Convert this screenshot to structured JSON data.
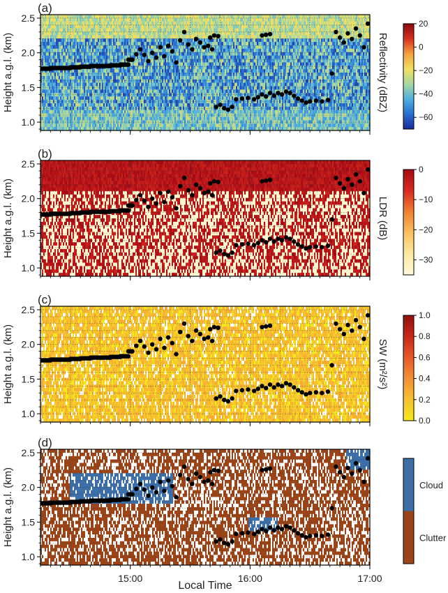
{
  "chart_data": [
    {
      "type": "heatmap",
      "panel": "(a)",
      "ylabel": "Height a.g.l. (km)",
      "xlim": [
        "14:15",
        "17:00"
      ],
      "ylim": [
        0.88,
        2.55
      ],
      "yticks": [
        "1.0",
        "1.5",
        "2.0",
        "2.5"
      ],
      "colorbar": {
        "label": "Reflectivity (dBZ)",
        "ticks": [
          "20",
          "0",
          "−20",
          "−40",
          "−60"
        ],
        "range": [
          -70,
          20
        ],
        "colors": [
          "#1a2a9a",
          "#2a6fd0",
          "#4fb0e0",
          "#a8d8a0",
          "#f3e060",
          "#f4a040",
          "#d83020",
          "#8a0a10"
        ]
      },
      "grid": true
    },
    {
      "type": "heatmap",
      "panel": "(b)",
      "ylabel": "Height a.g.l. (km)",
      "xlim": [
        "14:15",
        "17:00"
      ],
      "ylim": [
        0.88,
        2.55
      ],
      "yticks": [
        "1.0",
        "1.5",
        "2.0",
        "2.5"
      ],
      "colorbar": {
        "label": "LDR (dB)",
        "ticks": [
          "0",
          "−10",
          "−20",
          "−30"
        ],
        "range": [
          -35,
          0
        ],
        "colors": [
          "#fff9d8",
          "#fde9a0",
          "#fbc060",
          "#f08030",
          "#d82a20",
          "#a40a14"
        ]
      },
      "grid": true
    },
    {
      "type": "heatmap",
      "panel": "(c)",
      "ylabel": "Height a.g.l. (km)",
      "xlim": [
        "14:15",
        "17:00"
      ],
      "ylim": [
        0.88,
        2.55
      ],
      "yticks": [
        "1.0",
        "1.5",
        "2.0",
        "2.5"
      ],
      "colorbar": {
        "label": "SW (m²/s²)",
        "ticks": [
          "1.0",
          "0.8",
          "0.6",
          "0.4",
          "0.2",
          "0.0"
        ],
        "range": [
          0,
          1
        ],
        "colors": [
          "#f5e81c",
          "#f7c030",
          "#f49038",
          "#e85828",
          "#c82818",
          "#901010"
        ]
      },
      "grid": true
    },
    {
      "type": "heatmap",
      "panel": "(d)",
      "ylabel": "Height a.g.l. (km)",
      "xlabel": "Local Time",
      "xlim": [
        "14:15",
        "17:00"
      ],
      "ylim": [
        0.88,
        2.55
      ],
      "yticks": [
        "1.0",
        "1.5",
        "2.0",
        "2.5"
      ],
      "xticks": [
        "15:00",
        "16:00",
        "17:00"
      ],
      "colorbar": {
        "label": "",
        "categories": [
          "Cloud",
          "Clutter"
        ],
        "colors": [
          "#3c6fa8",
          "#9a4418"
        ]
      },
      "grid": true
    }
  ],
  "overlay_points": [
    [
      "14:15",
      1.77
    ],
    [
      "14:20",
      1.77
    ],
    [
      "14:25",
      1.78
    ],
    [
      "14:30",
      1.78
    ],
    [
      "14:35",
      1.79
    ],
    [
      "14:40",
      1.8
    ],
    [
      "14:45",
      1.81
    ],
    [
      "14:50",
      1.81
    ],
    [
      "14:55",
      1.82
    ],
    [
      "14:59",
      1.83
    ],
    [
      "15:01",
      1.9
    ],
    [
      "15:03",
      1.98
    ],
    [
      "15:05",
      2.05
    ],
    [
      "15:07",
      1.97
    ],
    [
      "15:09",
      1.88
    ],
    [
      "15:11",
      2.0
    ],
    [
      "15:13",
      1.93
    ],
    [
      "15:15",
      2.08
    ],
    [
      "15:17",
      1.95
    ],
    [
      "15:19",
      2.1
    ],
    [
      "15:21",
      2.02
    ],
    [
      "15:23",
      1.86
    ],
    [
      "15:25",
      2.18
    ],
    [
      "15:27",
      2.3
    ],
    [
      "15:29",
      2.12
    ],
    [
      "15:31",
      2.05
    ],
    [
      "15:33",
      2.2
    ],
    [
      "15:35",
      2.15
    ],
    [
      "15:37",
      2.08
    ],
    [
      "15:39",
      2.1
    ],
    [
      "15:41",
      2.05
    ],
    [
      "15:43",
      1.22
    ],
    [
      "15:45",
      1.25
    ],
    [
      "15:47",
      1.2
    ],
    [
      "15:49",
      1.18
    ],
    [
      "15:51",
      1.22
    ],
    [
      "15:53",
      1.33
    ],
    [
      "15:56",
      1.34
    ],
    [
      "15:59",
      1.35
    ],
    [
      "16:02",
      1.33
    ],
    [
      "16:04",
      1.36
    ],
    [
      "16:06",
      1.4
    ],
    [
      "16:08",
      1.37
    ],
    [
      "16:10",
      1.42
    ],
    [
      "16:12",
      1.38
    ],
    [
      "16:14",
      1.42
    ],
    [
      "16:16",
      1.4
    ],
    [
      "16:18",
      1.44
    ],
    [
      "16:20",
      1.42
    ],
    [
      "16:22",
      1.38
    ],
    [
      "16:24",
      1.34
    ],
    [
      "16:26",
      1.31
    ],
    [
      "16:28",
      1.28
    ],
    [
      "16:30",
      1.3
    ],
    [
      "16:33",
      1.31
    ],
    [
      "16:36",
      1.3
    ],
    [
      "16:39",
      1.32
    ],
    [
      "16:41",
      1.7
    ],
    [
      "16:43",
      2.3
    ],
    [
      "16:45",
      2.22
    ],
    [
      "16:47",
      2.15
    ],
    [
      "16:49",
      2.28
    ],
    [
      "16:51",
      2.2
    ],
    [
      "16:53",
      2.35
    ],
    [
      "16:55",
      2.25
    ],
    [
      "16:57",
      2.08
    ],
    [
      "16:59",
      2.42
    ]
  ],
  "overlay_points_upper": [
    [
      "15:40",
      2.22
    ],
    [
      "15:42",
      2.25
    ],
    [
      "15:44",
      2.24
    ],
    [
      "16:06",
      2.25
    ],
    [
      "16:08",
      2.26
    ],
    [
      "16:10",
      2.27
    ]
  ]
}
